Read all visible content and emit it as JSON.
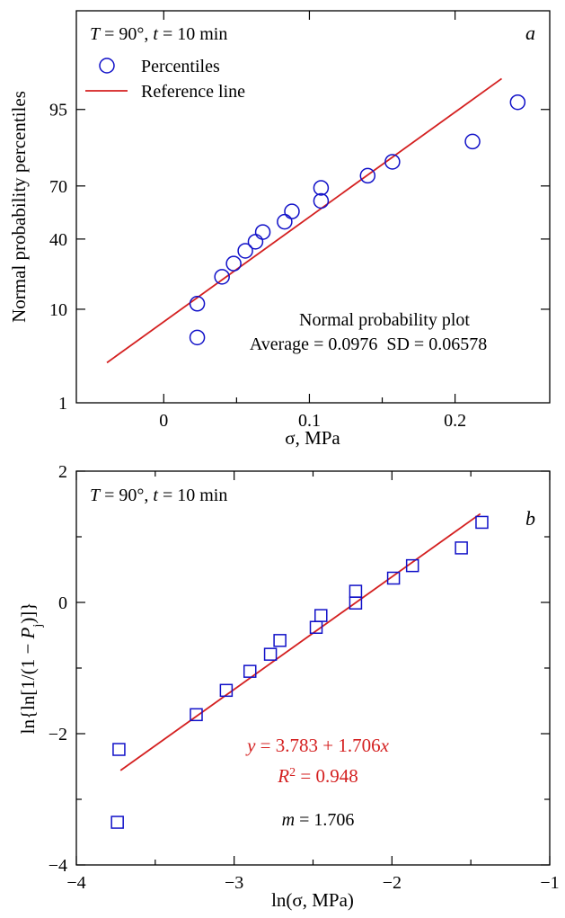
{
  "chart_data": [
    {
      "type": "scatter",
      "panel_label": "a",
      "condition": {
        "T": "T",
        "T_value": " = 90°, ",
        "t": "t",
        "t_value": " = 10 min"
      },
      "xlabel": "σ, MPa",
      "ylabel": "Normal probability percentiles",
      "xlim": [
        -0.06,
        0.265
      ],
      "y_scale": "normal-probability",
      "x_ticks": [
        0,
        0.1,
        0.2
      ],
      "x_tick_labels": [
        "0",
        "0.1",
        "0.2"
      ],
      "y_ticks": [
        1,
        10,
        40,
        70,
        95
      ],
      "y_tick_labels": [
        "1",
        "10",
        "40",
        "70",
        "95"
      ],
      "legend": [
        {
          "label": "Percentiles",
          "marker": "circle",
          "color": "#1010c8"
        },
        {
          "label": "Reference line",
          "marker": "line",
          "color": "#d42020"
        }
      ],
      "legend_position": "top-left",
      "annotation": {
        "line1": "Normal probability plot",
        "line2": "Average = 0.0976  SD = 0.06578"
      },
      "series": [
        {
          "name": "Percentiles",
          "x": [
            0.023,
            0.023,
            0.04,
            0.048,
            0.056,
            0.063,
            0.068,
            0.083,
            0.088,
            0.108,
            0.108,
            0.14,
            0.157,
            0.212,
            0.243
          ],
          "y": [
            4.5,
            11.5,
            21,
            27,
            33.5,
            38.5,
            44,
            50,
            56,
            62,
            69,
            75,
            81,
            88,
            96
          ],
          "color": "#1010c8"
        },
        {
          "name": "Reference line",
          "x": [
            -0.039,
            0.232
          ],
          "y": [
            1.95,
            98.2
          ],
          "color": "#d42020"
        }
      ]
    },
    {
      "type": "scatter",
      "panel_label": "b",
      "condition": {
        "T": "T",
        "T_value": " = 90°, ",
        "t": "t",
        "t_value": " = 10 min"
      },
      "xlabel": "ln(σ, MPa)",
      "ylabel": {
        "prefix": "ln{ln[1/(1 − ",
        "P": "P",
        "sub": "j",
        "suffix": ")]}"
      },
      "xlim": [
        -4,
        -1
      ],
      "ylim": [
        -4,
        2
      ],
      "x_ticks": [
        -4,
        -3,
        -2,
        -1
      ],
      "x_tick_labels": [
        "−4",
        "−3",
        "−2",
        "−1"
      ],
      "y_ticks": [
        -4,
        -2,
        0,
        2
      ],
      "y_tick_labels": [
        "−4",
        "−2",
        "0",
        "2"
      ],
      "annotation": {
        "fit": {
          "y": "y",
          "rest": " = 3.783 + 1.706",
          "x": "x"
        },
        "r2": {
          "R": "R",
          "sup": "2",
          "rest": " = 0.948"
        },
        "m": {
          "m": "m",
          "rest": " = 1.706"
        }
      },
      "series": [
        {
          "name": "",
          "marker": "square",
          "color": "#1010c8",
          "x": [
            -3.74,
            -3.73,
            -3.24,
            -3.05,
            -2.9,
            -2.77,
            -2.71,
            -2.48,
            -2.45,
            -2.23,
            -2.23,
            -1.99,
            -1.87,
            -1.56,
            -1.43
          ],
          "y": [
            -3.35,
            -2.24,
            -1.71,
            -1.34,
            -1.05,
            -0.79,
            -0.58,
            -0.38,
            -0.2,
            -0.01,
            0.17,
            0.37,
            0.56,
            0.83,
            1.22
          ]
        },
        {
          "name": "",
          "marker": "line",
          "color": "#d42020",
          "x": [
            -3.72,
            -1.44
          ],
          "y": [
            -2.56,
            1.35
          ]
        }
      ]
    }
  ]
}
